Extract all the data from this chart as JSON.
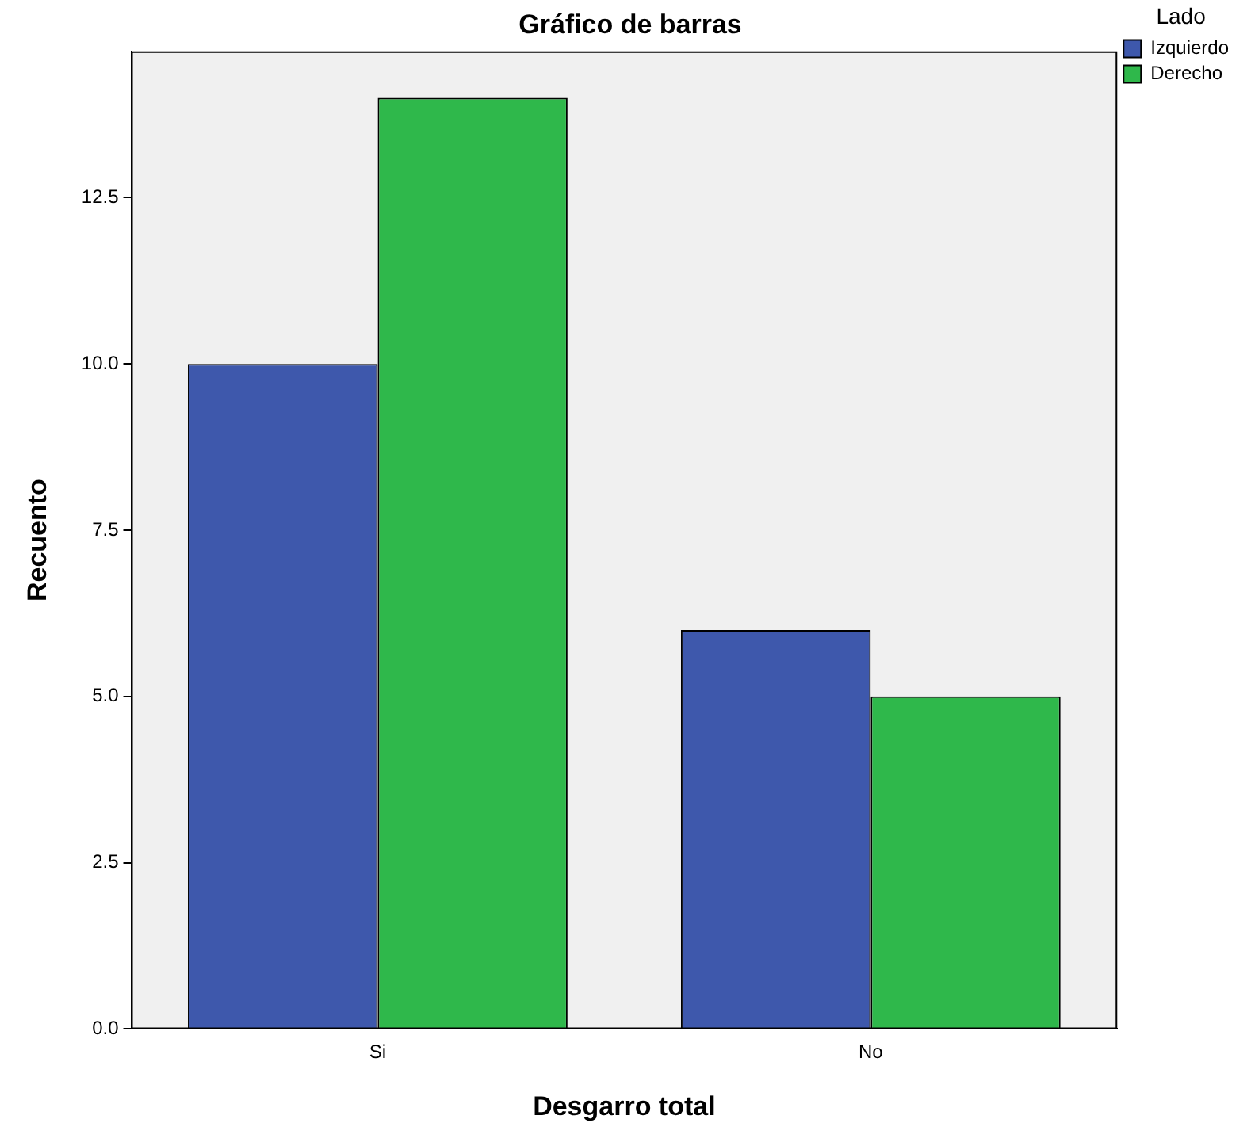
{
  "chart_data": {
    "type": "bar",
    "title": "Gráfico de barras",
    "xlabel": "Desgarro total",
    "ylabel": "Recuento",
    "legend_title": "Lado",
    "categories": [
      "Si",
      "No"
    ],
    "series": [
      {
        "name": "Izquierdo",
        "color": "#3e58ac",
        "values": [
          10,
          6
        ]
      },
      {
        "name": "Derecho",
        "color": "#2fb84b",
        "values": [
          14,
          5
        ]
      }
    ],
    "ylim": [
      0,
      14.7
    ],
    "yticks": [
      {
        "value": 0,
        "label": "0.0"
      },
      {
        "value": 2.5,
        "label": "2.5"
      },
      {
        "value": 5,
        "label": "5.0"
      },
      {
        "value": 7.5,
        "label": "7.5"
      },
      {
        "value": 10,
        "label": "10.0"
      },
      {
        "value": 12.5,
        "label": "12.5"
      }
    ],
    "grid": false,
    "legend": "top right"
  }
}
